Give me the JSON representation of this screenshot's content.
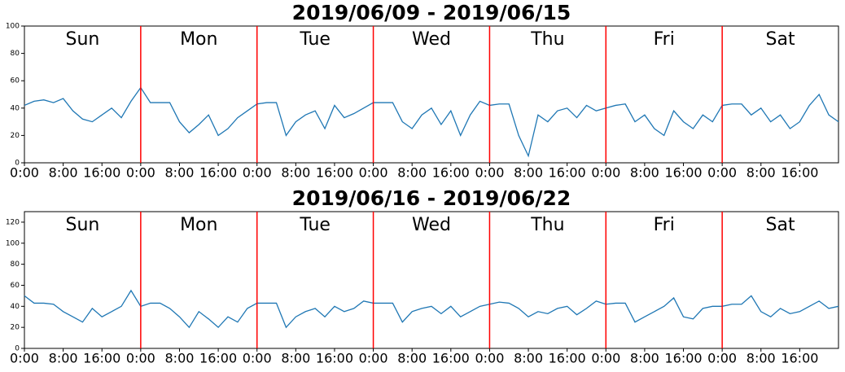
{
  "chart_data": [
    {
      "type": "line",
      "title": "2019/06/09 - 2019/06/15",
      "color": "#1f77b4",
      "x": [
        0,
        2,
        4,
        6,
        8,
        10,
        12,
        14,
        16,
        18,
        20,
        22,
        24,
        26,
        28,
        30,
        32,
        34,
        36,
        38,
        40,
        42,
        44,
        46,
        48,
        50,
        52,
        54,
        56,
        58,
        60,
        62,
        64,
        66,
        68,
        70,
        72,
        74,
        76,
        78,
        80,
        82,
        84,
        86,
        88,
        90,
        92,
        94,
        96,
        98,
        100,
        102,
        104,
        106,
        108,
        110,
        112,
        114,
        116,
        118,
        120,
        122,
        124,
        126,
        128,
        130,
        132,
        134,
        136,
        138,
        140,
        142,
        144,
        146,
        148,
        150,
        152,
        154,
        156,
        158,
        160,
        162,
        164,
        166,
        168
      ],
      "values": [
        42,
        45,
        46,
        44,
        47,
        38,
        32,
        30,
        35,
        40,
        33,
        45,
        55,
        44,
        44,
        44,
        30,
        22,
        28,
        35,
        20,
        25,
        33,
        38,
        43,
        44,
        44,
        20,
        30,
        35,
        38,
        25,
        42,
        33,
        36,
        40,
        44,
        44,
        44,
        30,
        25,
        35,
        40,
        28,
        38,
        20,
        35,
        45,
        42,
        43,
        43,
        20,
        5,
        35,
        30,
        38,
        40,
        33,
        42,
        38,
        40,
        42,
        43,
        30,
        35,
        25,
        20,
        38,
        30,
        25,
        35,
        30,
        42,
        43,
        43,
        35,
        40,
        30,
        35,
        25,
        30,
        42,
        50,
        35,
        30
      ],
      "xlim": [
        0,
        168
      ],
      "ylim": [
        0,
        100
      ],
      "yticks": [
        0,
        20,
        40,
        60,
        80,
        100
      ],
      "xticks": [
        {
          "value": 0,
          "label": "0:00"
        },
        {
          "value": 8,
          "label": "8:00"
        },
        {
          "value": 16,
          "label": "16:00"
        },
        {
          "value": 24,
          "label": "0:00"
        },
        {
          "value": 32,
          "label": "8:00"
        },
        {
          "value": 40,
          "label": "16:00"
        },
        {
          "value": 48,
          "label": "0:00"
        },
        {
          "value": 56,
          "label": "8:00"
        },
        {
          "value": 64,
          "label": "16:00"
        },
        {
          "value": 72,
          "label": "0:00"
        },
        {
          "value": 80,
          "label": "8:00"
        },
        {
          "value": 88,
          "label": "16:00"
        },
        {
          "value": 96,
          "label": "0:00"
        },
        {
          "value": 104,
          "label": "8:00"
        },
        {
          "value": 112,
          "label": "16:00"
        },
        {
          "value": 120,
          "label": "0:00"
        },
        {
          "value": 128,
          "label": "8:00"
        },
        {
          "value": 136,
          "label": "16:00"
        },
        {
          "value": 144,
          "label": "0:00"
        },
        {
          "value": 152,
          "label": "8:00"
        },
        {
          "value": 160,
          "label": "16:00"
        }
      ],
      "annotations": [
        "Sun",
        "Mon",
        "Tue",
        "Wed",
        "Thu",
        "Fri",
        "Sat"
      ],
      "vlines": [
        24,
        48,
        72,
        96,
        120,
        144
      ],
      "vline_color": "#ff0000"
    },
    {
      "type": "line",
      "title": "2019/06/16 - 2019/06/22",
      "color": "#1f77b4",
      "x": [
        0,
        2,
        4,
        6,
        8,
        10,
        12,
        14,
        16,
        18,
        20,
        22,
        24,
        26,
        28,
        30,
        32,
        34,
        36,
        38,
        40,
        42,
        44,
        46,
        48,
        50,
        52,
        54,
        56,
        58,
        60,
        62,
        64,
        66,
        68,
        70,
        72,
        74,
        76,
        78,
        80,
        82,
        84,
        86,
        88,
        90,
        92,
        94,
        96,
        98,
        100,
        102,
        104,
        106,
        108,
        110,
        112,
        114,
        116,
        118,
        120,
        122,
        124,
        126,
        128,
        130,
        132,
        134,
        136,
        138,
        140,
        142,
        144,
        146,
        148,
        150,
        152,
        154,
        156,
        158,
        160,
        162,
        164,
        166,
        168
      ],
      "values": [
        50,
        43,
        43,
        42,
        35,
        30,
        25,
        38,
        30,
        35,
        40,
        55,
        40,
        43,
        43,
        38,
        30,
        20,
        35,
        28,
        20,
        30,
        25,
        38,
        43,
        43,
        43,
        20,
        30,
        35,
        38,
        30,
        40,
        35,
        38,
        45,
        43,
        43,
        43,
        25,
        35,
        38,
        40,
        33,
        40,
        30,
        35,
        40,
        42,
        44,
        43,
        38,
        30,
        35,
        33,
        38,
        40,
        32,
        38,
        45,
        42,
        43,
        43,
        25,
        30,
        35,
        40,
        48,
        30,
        28,
        38,
        40,
        40,
        42,
        42,
        50,
        35,
        30,
        38,
        33,
        35,
        40,
        45,
        38,
        40
      ],
      "xlim": [
        0,
        168
      ],
      "ylim": [
        0,
        130
      ],
      "yticks": [
        0,
        20,
        40,
        60,
        80,
        100,
        120
      ],
      "xticks": [
        {
          "value": 0,
          "label": "0:00"
        },
        {
          "value": 8,
          "label": "8:00"
        },
        {
          "value": 16,
          "label": "16:00"
        },
        {
          "value": 24,
          "label": "0:00"
        },
        {
          "value": 32,
          "label": "8:00"
        },
        {
          "value": 40,
          "label": "16:00"
        },
        {
          "value": 48,
          "label": "0:00"
        },
        {
          "value": 56,
          "label": "8:00"
        },
        {
          "value": 64,
          "label": "16:00"
        },
        {
          "value": 72,
          "label": "0:00"
        },
        {
          "value": 80,
          "label": "8:00"
        },
        {
          "value": 88,
          "label": "16:00"
        },
        {
          "value": 96,
          "label": "0:00"
        },
        {
          "value": 104,
          "label": "8:00"
        },
        {
          "value": 112,
          "label": "16:00"
        },
        {
          "value": 120,
          "label": "0:00"
        },
        {
          "value": 128,
          "label": "8:00"
        },
        {
          "value": 136,
          "label": "16:00"
        },
        {
          "value": 144,
          "label": "0:00"
        },
        {
          "value": 152,
          "label": "8:00"
        },
        {
          "value": 160,
          "label": "16:00"
        }
      ],
      "annotations": [
        "Sun",
        "Mon",
        "Tue",
        "Wed",
        "Thu",
        "Fri",
        "Sat"
      ],
      "vlines": [
        24,
        48,
        72,
        96,
        120,
        144
      ],
      "vline_color": "#ff0000"
    }
  ]
}
